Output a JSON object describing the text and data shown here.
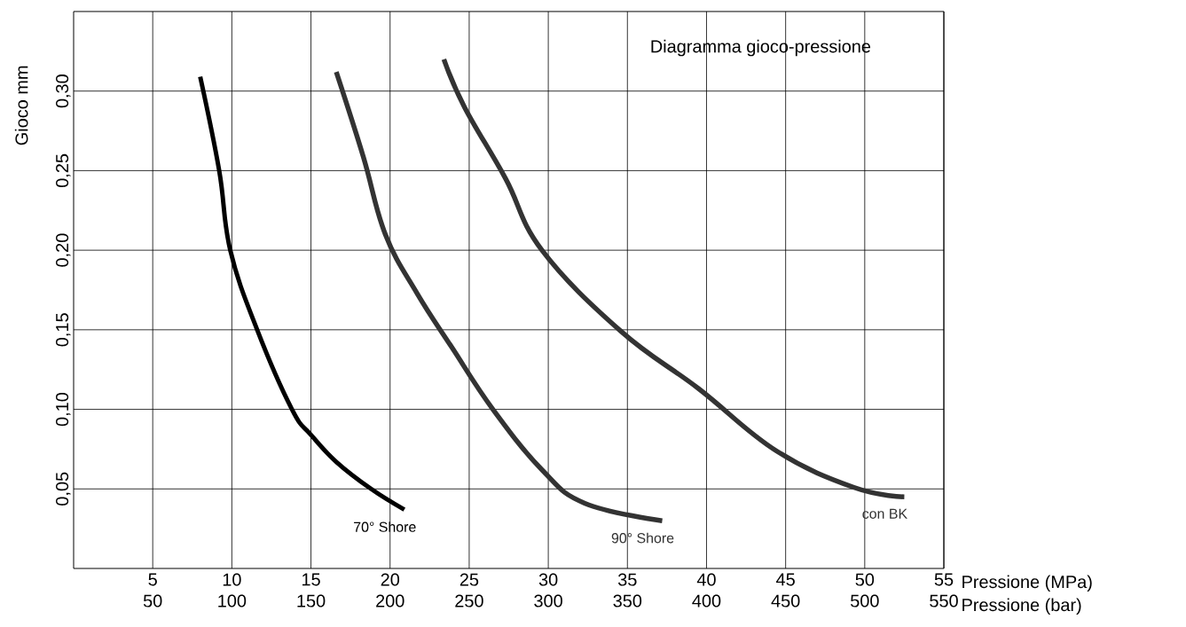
{
  "chart_data": {
    "type": "line",
    "title": "Diagramma gioco-pressione",
    "xlabel": "Pressione (MPa)",
    "x2label": "Pressione (bar)",
    "ylabel": "Gioco mm",
    "xlim": [
      0,
      55
    ],
    "xticks": [
      5,
      10,
      15,
      20,
      25,
      30,
      35,
      40,
      45,
      50,
      55
    ],
    "x2lim": [
      0,
      550
    ],
    "x2ticks": [
      50,
      100,
      150,
      200,
      250,
      300,
      350,
      400,
      450,
      500,
      550
    ],
    "ylim": [
      0,
      0.35
    ],
    "yticks": [
      {
        "value": 0.05,
        "label": "0,05"
      },
      {
        "value": 0.1,
        "label": "0,10"
      },
      {
        "value": 0.15,
        "label": "0,15"
      },
      {
        "value": 0.2,
        "label": "0,20"
      },
      {
        "value": 0.25,
        "label": "0,25"
      },
      {
        "value": 0.3,
        "label": "0,30"
      }
    ],
    "grid": true,
    "series": [
      {
        "name": "70° Shore",
        "color": "#000000",
        "x": [
          8.0,
          9.2,
          9.9,
          11.6,
          13.8,
          15.0,
          16.6,
          18.8,
          20.9
        ],
        "values": [
          0.309,
          0.25,
          0.2,
          0.15,
          0.1,
          0.084,
          0.067,
          0.05,
          0.037
        ]
      },
      {
        "name": "90° Shore",
        "color": "#333333",
        "x": [
          16.6,
          18.3,
          19.7,
          21.7,
          23.9,
          26.5,
          29.6,
          32.3,
          37.2
        ],
        "values": [
          0.312,
          0.259,
          0.21,
          0.173,
          0.139,
          0.1,
          0.062,
          0.041,
          0.03
        ]
      },
      {
        "name": "con BK",
        "color": "#333333",
        "x": [
          23.4,
          24.7,
          27.3,
          29.6,
          34.6,
          39.5,
          44.4,
          49.3,
          52.5
        ],
        "values": [
          0.32,
          0.29,
          0.245,
          0.2,
          0.149,
          0.113,
          0.074,
          0.051,
          0.045
        ]
      }
    ]
  }
}
